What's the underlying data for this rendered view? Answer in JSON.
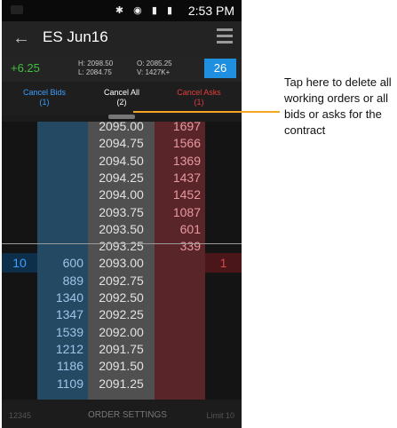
{
  "status": {
    "time": "2:53 PM",
    "icons": "✱ ◉ ▮ ▮"
  },
  "header": {
    "title": "ES Jun16"
  },
  "quote": {
    "change": "+6.25",
    "high": "H: 2098.50",
    "low": "L: 2084.75",
    "open": "O: 2085.25",
    "volume": "V: 1427K+",
    "position": "26"
  },
  "cancel": {
    "bids_label": "Cancel Bids",
    "bids_count": "(1)",
    "all_label": "Cancel All",
    "all_count": "(2)",
    "asks_label": "Cancel Asks",
    "asks_count": "(1)"
  },
  "ladder": {
    "rows": [
      {
        "bid": "",
        "price": "2095.00",
        "ask": "1697"
      },
      {
        "bid": "",
        "price": "2094.75",
        "ask": "1566"
      },
      {
        "bid": "",
        "price": "2094.50",
        "ask": "1369"
      },
      {
        "bid": "",
        "price": "2094.25",
        "ask": "1437"
      },
      {
        "bid": "",
        "price": "2094.00",
        "ask": "1452"
      },
      {
        "bid": "",
        "price": "2093.75",
        "ask": "1087"
      },
      {
        "bid": "",
        "price": "2093.50",
        "ask": "601"
      },
      {
        "bid": "",
        "price": "2093.25",
        "ask": "339"
      },
      {
        "bid": "600",
        "price": "2093.00",
        "ask": "",
        "working_buy": "10",
        "working_sell": "1"
      },
      {
        "bid": "889",
        "price": "2092.75",
        "ask": ""
      },
      {
        "bid": "1340",
        "price": "2092.50",
        "ask": ""
      },
      {
        "bid": "1347",
        "price": "2092.25",
        "ask": ""
      },
      {
        "bid": "1539",
        "price": "2092.00",
        "ask": ""
      },
      {
        "bid": "1212",
        "price": "2091.75",
        "ask": ""
      },
      {
        "bid": "1186",
        "price": "2091.50",
        "ask": ""
      },
      {
        "bid": "1109",
        "price": "2091.25",
        "ask": ""
      }
    ]
  },
  "bottom": {
    "account": "12345",
    "order_settings": "ORDER SETTINGS",
    "limit": "Limit   10"
  },
  "callout": {
    "text": "Tap here to delete all working orders or all bids or asks for the contract"
  }
}
